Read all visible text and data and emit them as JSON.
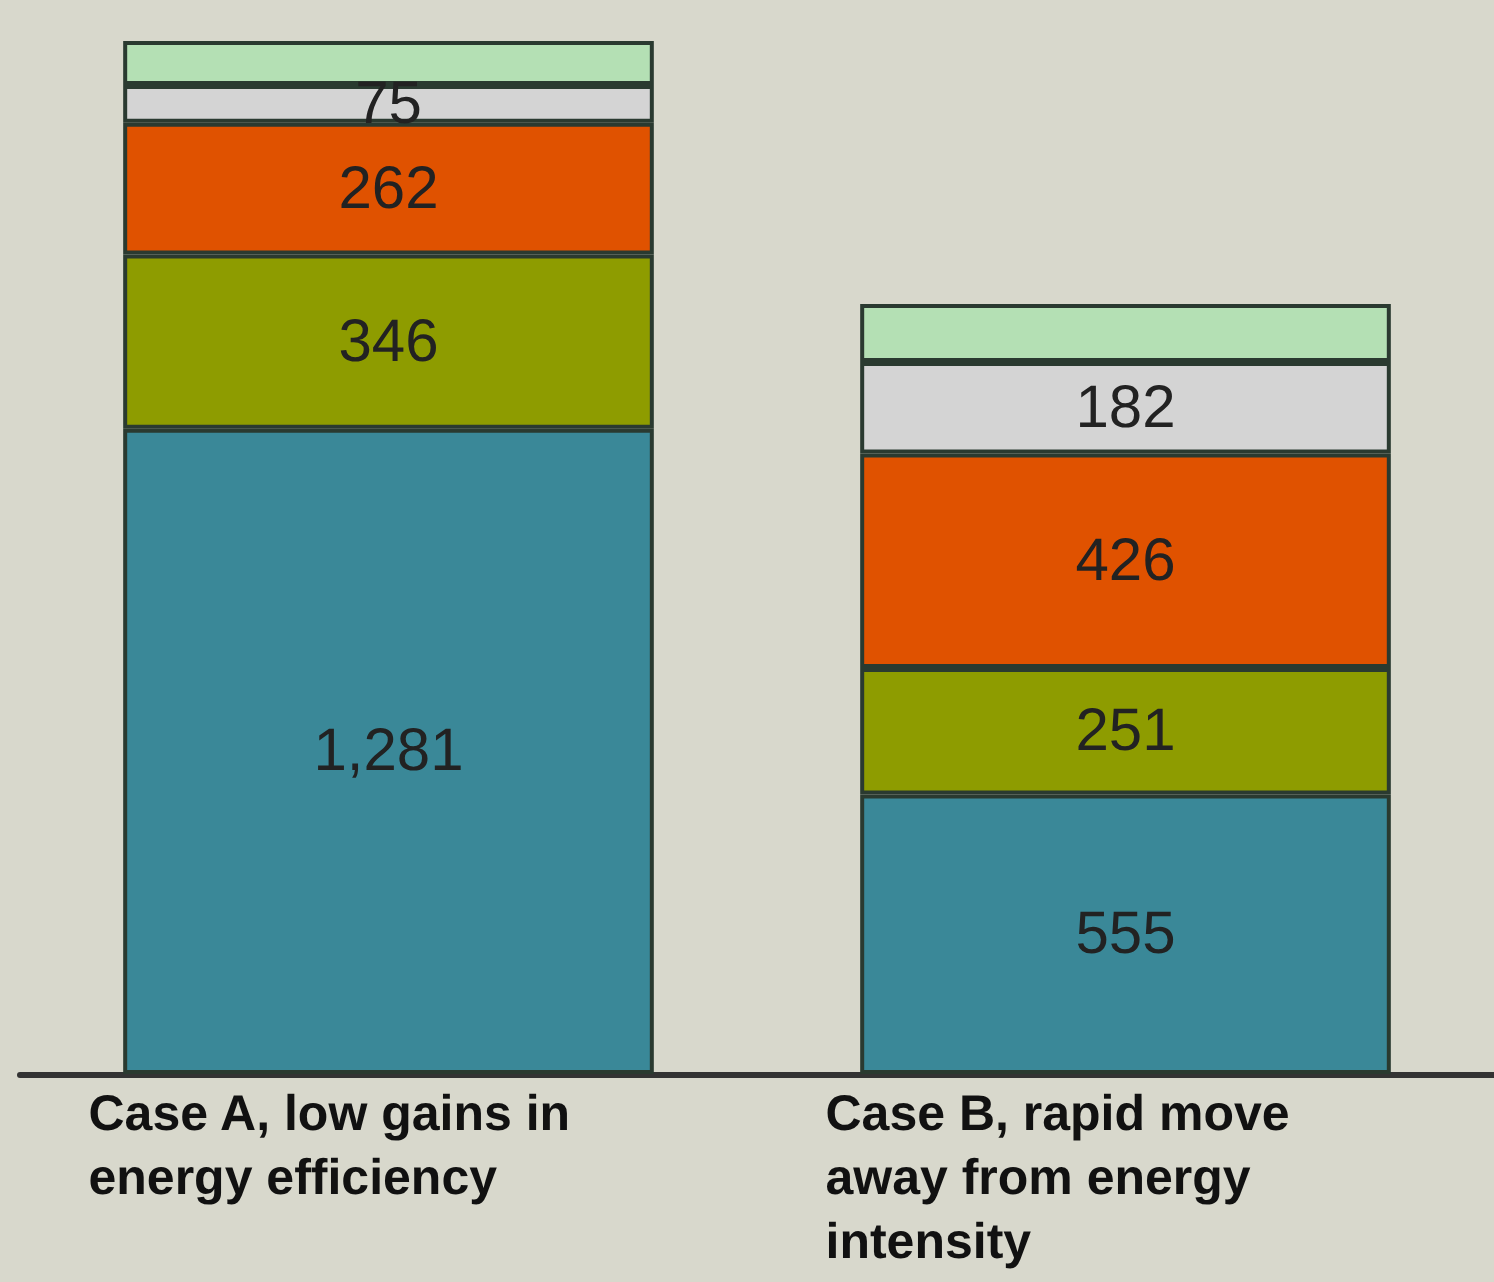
{
  "chart_data": {
    "type": "bar",
    "stacked": true,
    "categories": [
      "Case A, low gains in energy efficiency",
      "Case B, rapid move away from energy intensity"
    ],
    "series": [
      {
        "color": "#3a8898",
        "values": [
          1281,
          555
        ],
        "value_labels": [
          "1,281",
          "555"
        ]
      },
      {
        "color": "#8e9c00",
        "values": [
          346,
          251
        ],
        "value_labels": [
          "346",
          "251"
        ]
      },
      {
        "color": "#e05200",
        "values": [
          262,
          426
        ],
        "value_labels": [
          "262",
          "426"
        ]
      },
      {
        "color": "#d4d4d4",
        "values": [
          75,
          182
        ],
        "value_labels": [
          "75",
          "182"
        ]
      },
      {
        "color": "#b4e0b4",
        "values": [
          87,
          115
        ],
        "value_labels": [
          null,
          null
        ]
      }
    ]
  }
}
